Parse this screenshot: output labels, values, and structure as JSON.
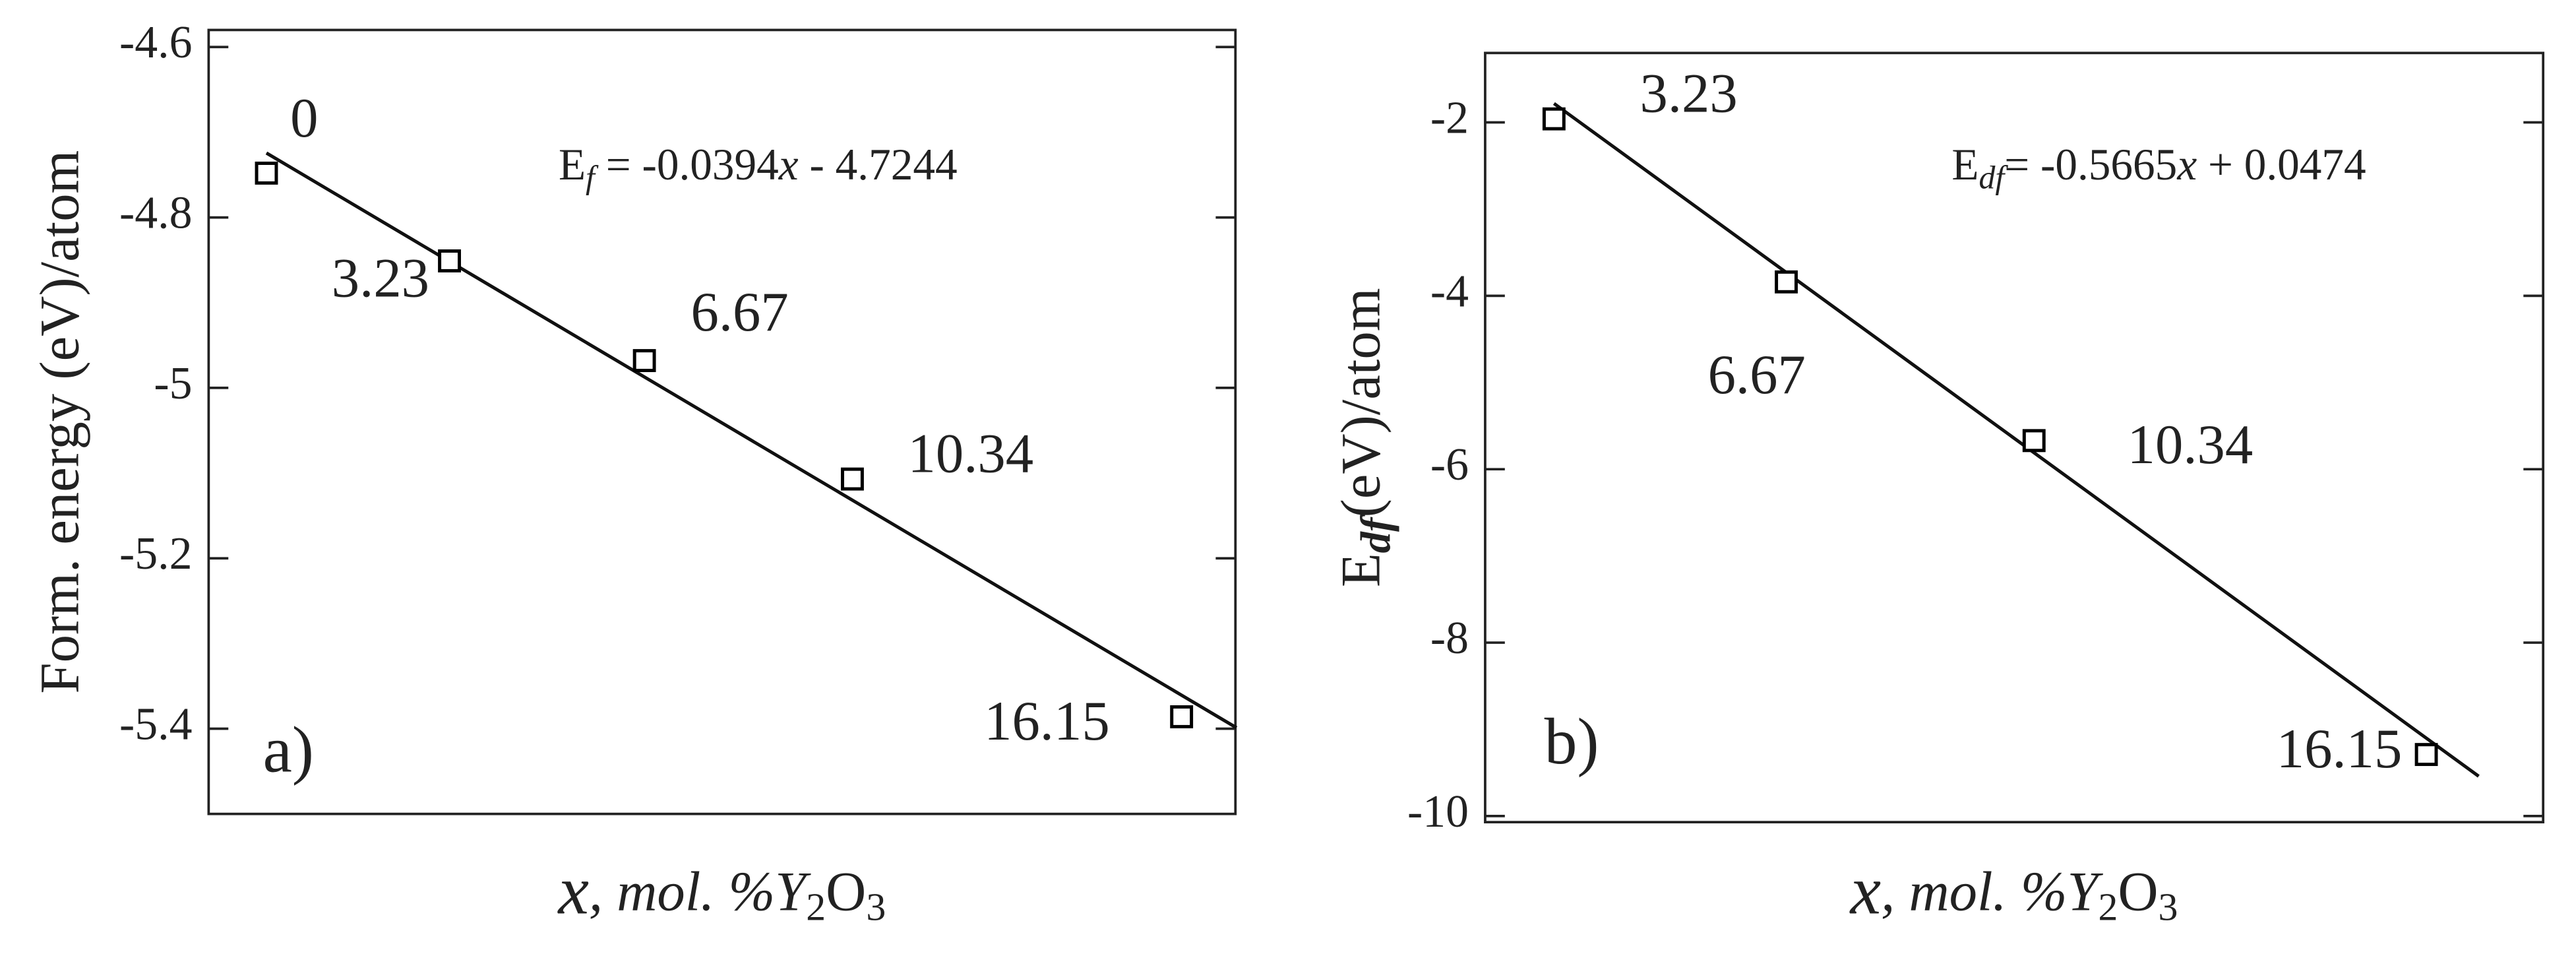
{
  "chart_data": [
    {
      "type": "scatter",
      "panel_label": "a)",
      "y_label": [
        "Form. energy (eV)/atom"
      ],
      "x_label": [
        "x",
        ", mol. %Y",
        "2",
        "O",
        "3"
      ],
      "equation": [
        "E",
        "f",
        " = -0.0394",
        "x",
        " - 4.7244"
      ],
      "x": [
        0,
        3.23,
        6.67,
        10.34,
        16.15
      ],
      "values": [
        -4.748,
        -4.851,
        -4.968,
        -5.107,
        -5.386
      ],
      "color": "#000000",
      "fit": {
        "slope": -0.0394,
        "intercept": -4.7244
      },
      "xlim": [
        -1.02,
        17.1
      ],
      "ylim": [
        -5.5,
        -4.58
      ],
      "yticks": [
        -4.6,
        -4.8,
        -5,
        -5.2,
        -5.4
      ]
    },
    {
      "type": "scatter",
      "panel_label": "b)",
      "y_label": [
        "E",
        "df",
        "(eV)/atom"
      ],
      "x_label": [
        "x",
        ", mol. %Y",
        "2",
        "O",
        "3"
      ],
      "equation": [
        "E",
        "df",
        "= -0.5665",
        "x",
        " + 0.0474"
      ],
      "x": [
        3.23,
        6.67,
        10.34,
        16.15
      ],
      "values": [
        -1.96,
        -3.84,
        -5.67,
        -9.29
      ],
      "color": "#000000",
      "fit": {
        "slope": -0.5665,
        "intercept": 0.0474
      },
      "xlim": [
        2.21,
        17.88
      ],
      "ylim": [
        -10.07,
        -1.2
      ],
      "yticks": [
        -2,
        -4,
        -6,
        -8,
        -10
      ]
    }
  ]
}
